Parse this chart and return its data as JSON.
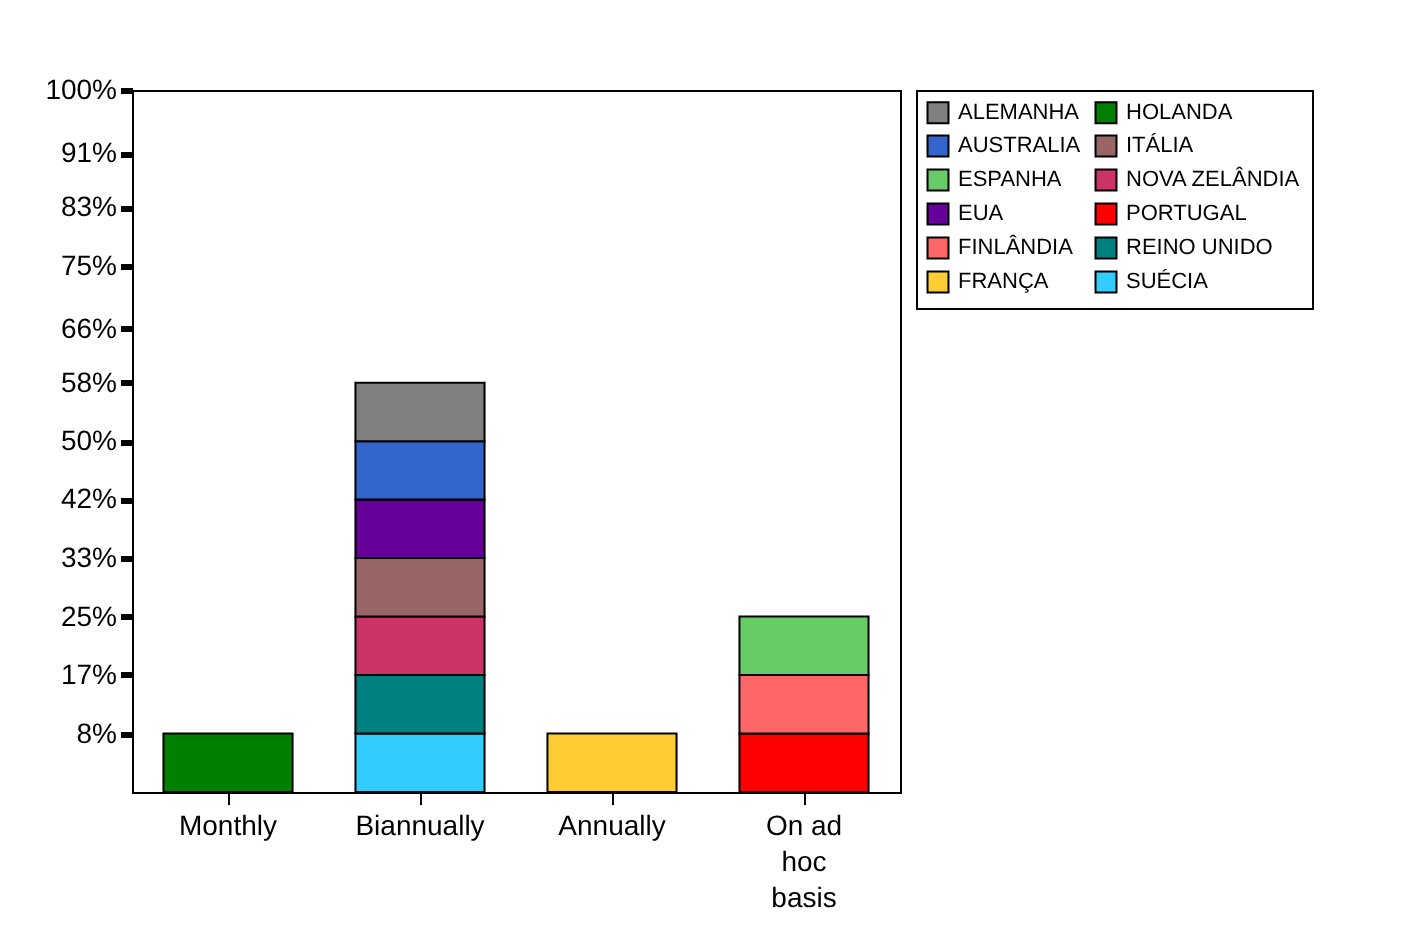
{
  "chart_data": {
    "type": "bar",
    "stacked": true,
    "categories": [
      "Monthly",
      "Biannually",
      "Annually",
      "On ad hoc basis"
    ],
    "ylim": [
      0,
      100
    ],
    "yticks": [
      {
        "value": 8.33,
        "label": "8%"
      },
      {
        "value": 16.67,
        "label": "17%"
      },
      {
        "value": 25,
        "label": "25%"
      },
      {
        "value": 33.33,
        "label": "33%"
      },
      {
        "value": 41.67,
        "label": "42%"
      },
      {
        "value": 50,
        "label": "50%"
      },
      {
        "value": 58.33,
        "label": "58%"
      },
      {
        "value": 66,
        "label": "66%"
      },
      {
        "value": 75,
        "label": "75%"
      },
      {
        "value": 83.33,
        "label": "83%"
      },
      {
        "value": 91,
        "label": "91%"
      },
      {
        "value": 100,
        "label": "100%"
      }
    ],
    "grid": false,
    "legend": "right",
    "series": [
      {
        "name": "SUÉCIA",
        "color": "#33ccff",
        "values": [
          null,
          8.33,
          null,
          null
        ]
      },
      {
        "name": "REINO UNIDO",
        "color": "#008080",
        "values": [
          null,
          8.33,
          null,
          null
        ]
      },
      {
        "name": "PORTUGAL",
        "color": "#ff0000",
        "values": [
          null,
          null,
          null,
          8.33
        ]
      },
      {
        "name": "NOVA ZELÂNDIA",
        "color": "#cc3366",
        "values": [
          null,
          8.33,
          null,
          null
        ]
      },
      {
        "name": "ITÁLIA",
        "color": "#996666",
        "values": [
          null,
          8.33,
          null,
          null
        ]
      },
      {
        "name": "HOLANDA",
        "color": "#008000",
        "values": [
          8.33,
          null,
          null,
          null
        ]
      },
      {
        "name": "FRANÇA",
        "color": "#ffcc33",
        "values": [
          null,
          null,
          8.33,
          null
        ]
      },
      {
        "name": "FINLÂNDIA",
        "color": "#ff6666",
        "values": [
          null,
          null,
          null,
          8.33
        ]
      },
      {
        "name": "EUA",
        "color": "#660099",
        "values": [
          null,
          8.33,
          null,
          null
        ]
      },
      {
        "name": "ESPANHA",
        "color": "#66cc66",
        "values": [
          null,
          null,
          null,
          8.33
        ]
      },
      {
        "name": "AUSTRALIA",
        "color": "#3366cc",
        "values": [
          null,
          8.33,
          null,
          null
        ]
      },
      {
        "name": "ALEMANHA",
        "color": "#808080",
        "values": [
          null,
          8.33,
          null,
          null
        ]
      }
    ]
  }
}
